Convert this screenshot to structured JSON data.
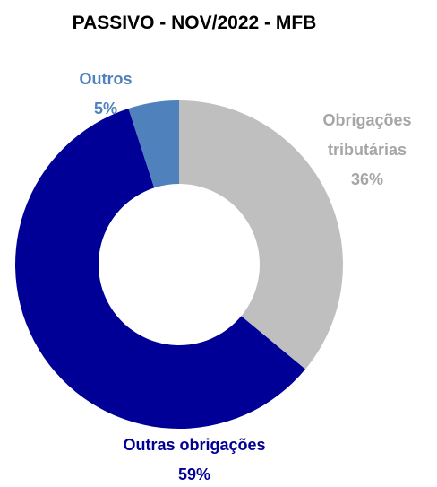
{
  "chart_data": {
    "type": "donut",
    "title": "PASSIVO - NOV/2022 - MFB",
    "categories": [
      "Obrigações tributárias",
      "Outras obrigações",
      "Outros"
    ],
    "values": [
      36,
      59,
      5
    ],
    "value_labels": [
      "36%",
      "59%",
      "5%"
    ],
    "colors": [
      "#bfbfbf",
      "#000096",
      "#4f81bd"
    ],
    "label_colors": [
      "#a6a6a6",
      "#000096",
      "#4f81bd"
    ]
  }
}
